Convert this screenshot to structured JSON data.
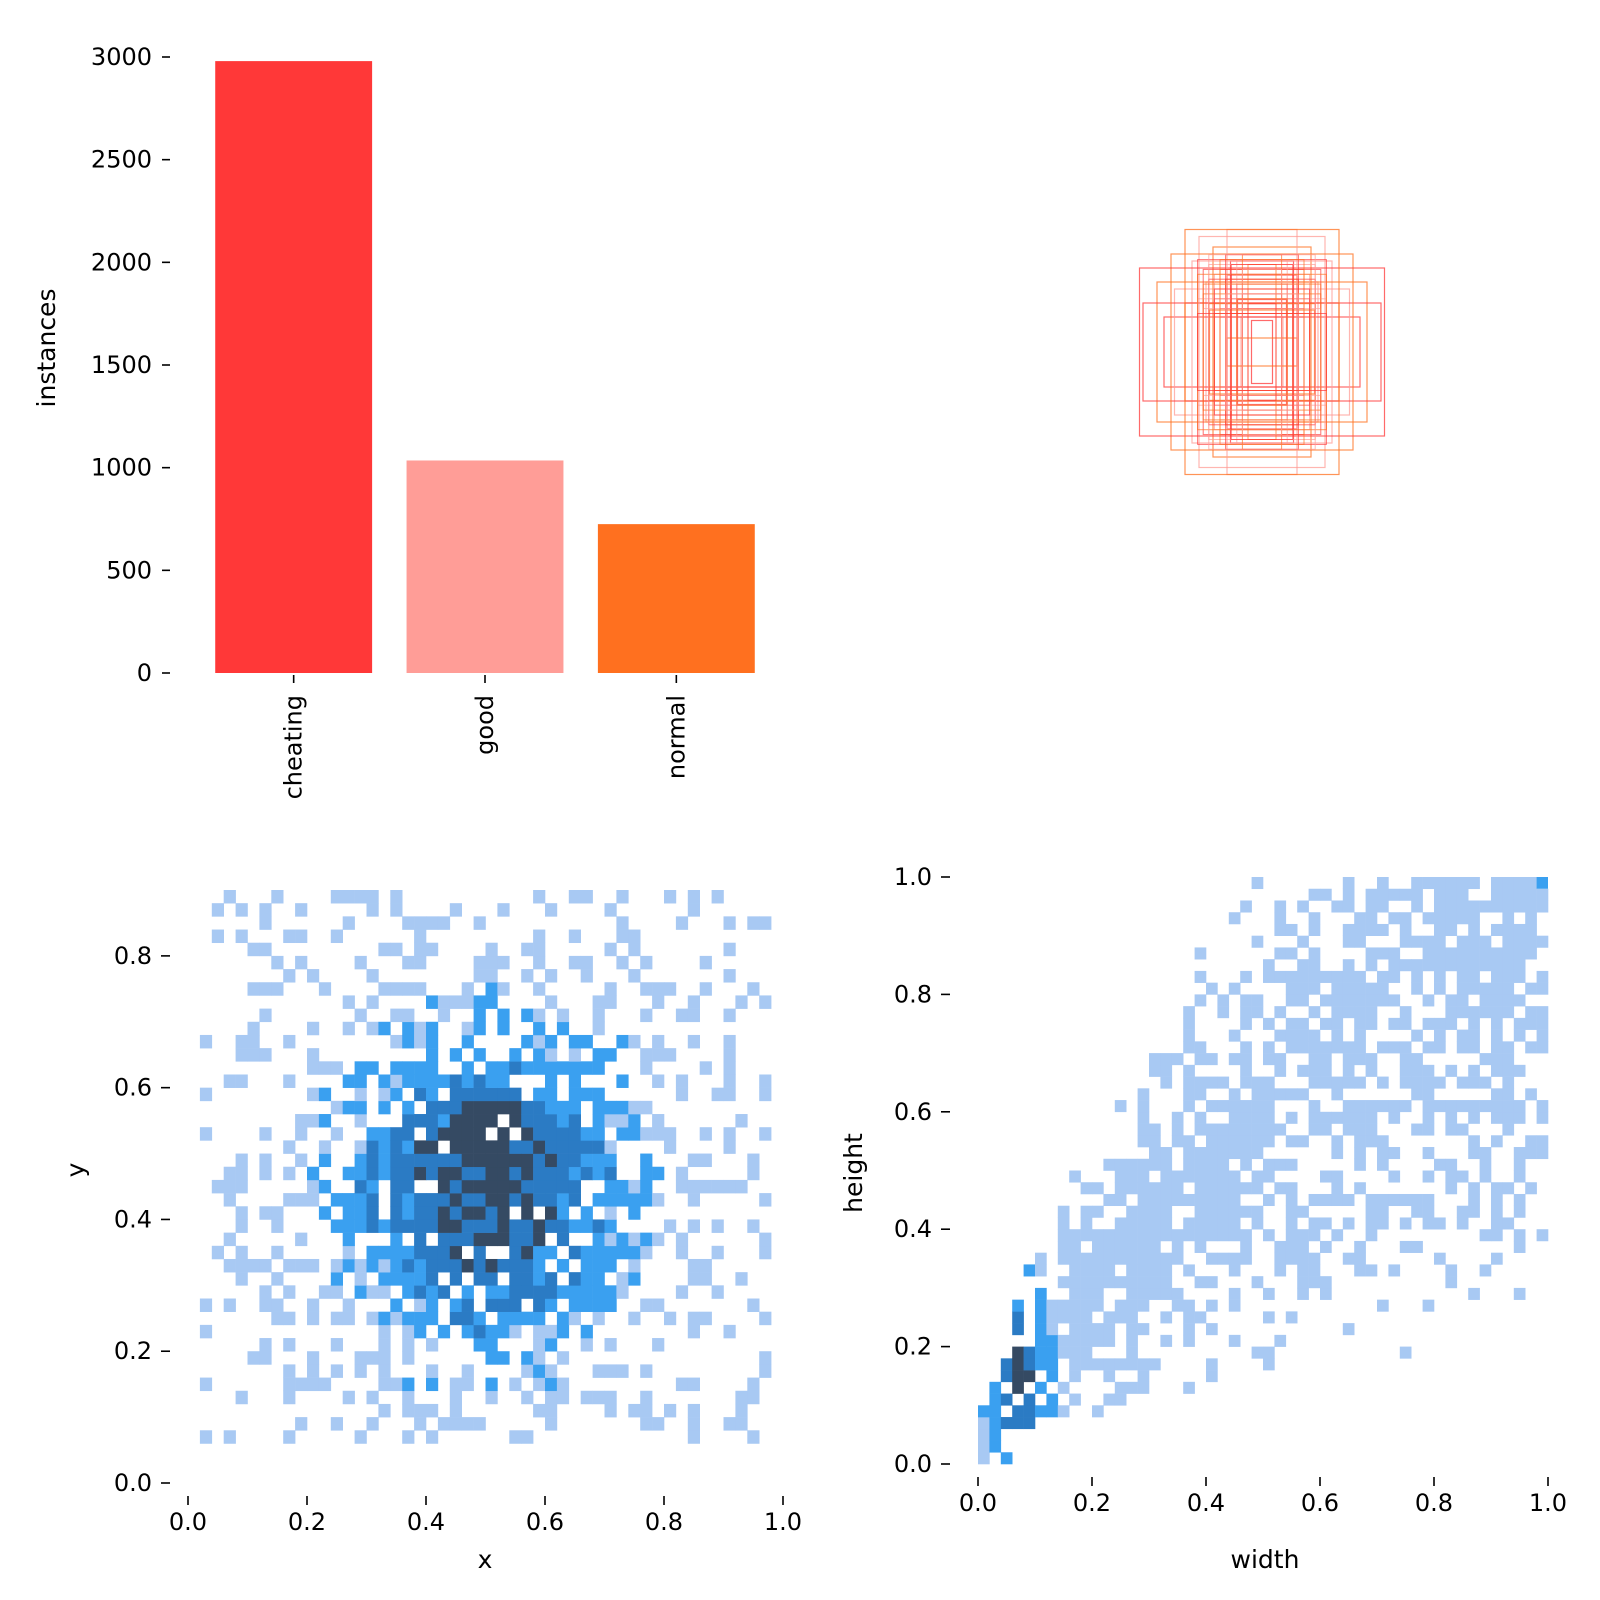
{
  "chart_data": [
    {
      "panel": "instances-bar",
      "type": "bar",
      "categories": [
        "cheating",
        "good",
        "normal"
      ],
      "values": [
        2980,
        1035,
        725
      ],
      "colors": [
        "#ff3838",
        "#ff9d97",
        "#ff701f"
      ],
      "ylabel": "instances",
      "ylim": [
        0,
        3000
      ],
      "yticks": [
        0,
        500,
        1000,
        1500,
        2000,
        2500,
        3000
      ],
      "ytick_labels": [
        "0",
        "500",
        "1000",
        "1500",
        "2000",
        "2500",
        "3000"
      ],
      "grid": false
    },
    {
      "panel": "box-overlay",
      "type": "diagram",
      "colors": [
        "#ff3838",
        "#ff9d97",
        "#ff701f"
      ],
      "box_sizes": [
        [
          0.03,
          0.09
        ],
        [
          0.06,
          0.1
        ],
        [
          0.1,
          0.04
        ],
        [
          0.07,
          0.15
        ],
        [
          0.12,
          0.1
        ],
        [
          0.15,
          0.12
        ],
        [
          0.1,
          0.22
        ],
        [
          0.16,
          0.2
        ],
        [
          0.22,
          0.14
        ],
        [
          0.28,
          0.1
        ],
        [
          0.25,
          0.18
        ],
        [
          0.14,
          0.3
        ],
        [
          0.09,
          0.26
        ],
        [
          0.2,
          0.26
        ],
        [
          0.3,
          0.2
        ],
        [
          0.34,
          0.14
        ],
        [
          0.18,
          0.33
        ],
        [
          0.26,
          0.28
        ],
        [
          0.35,
          0.24
        ],
        [
          0.1,
          0.35
        ],
        [
          0.22,
          0.35
        ]
      ]
    },
    {
      "panel": "xy-histogram",
      "type": "heatmap",
      "xlabel": "x",
      "ylabel": "y",
      "xlim": [
        0,
        1
      ],
      "ylim": [
        0,
        0.9
      ],
      "xticks": [
        "0.0",
        "0.2",
        "0.4",
        "0.6",
        "0.8",
        "1.0"
      ],
      "yticks": [
        "0.0",
        "0.2",
        "0.4",
        "0.6",
        "0.8"
      ],
      "cmap": [
        "#a8c9f3",
        "#3aa0f0",
        "#2b7bc4",
        "#354a63"
      ],
      "center": [
        0.5,
        0.5
      ],
      "peak_count_level": 3
    },
    {
      "panel": "wh-histogram",
      "type": "heatmap",
      "xlabel": "width",
      "ylabel": "height",
      "xlim": [
        0,
        1
      ],
      "ylim": [
        0,
        1
      ],
      "xticks": [
        "0.0",
        "0.2",
        "0.4",
        "0.6",
        "0.8",
        "1.0"
      ],
      "yticks": [
        "0.0",
        "0.2",
        "0.4",
        "0.6",
        "0.8",
        "1.0"
      ],
      "cmap": [
        "#a8c9f3",
        "#3aa0f0",
        "#2b7bc4",
        "#354a63"
      ],
      "peak": [
        0.07,
        0.15
      ],
      "peak_count_level": 3
    }
  ]
}
